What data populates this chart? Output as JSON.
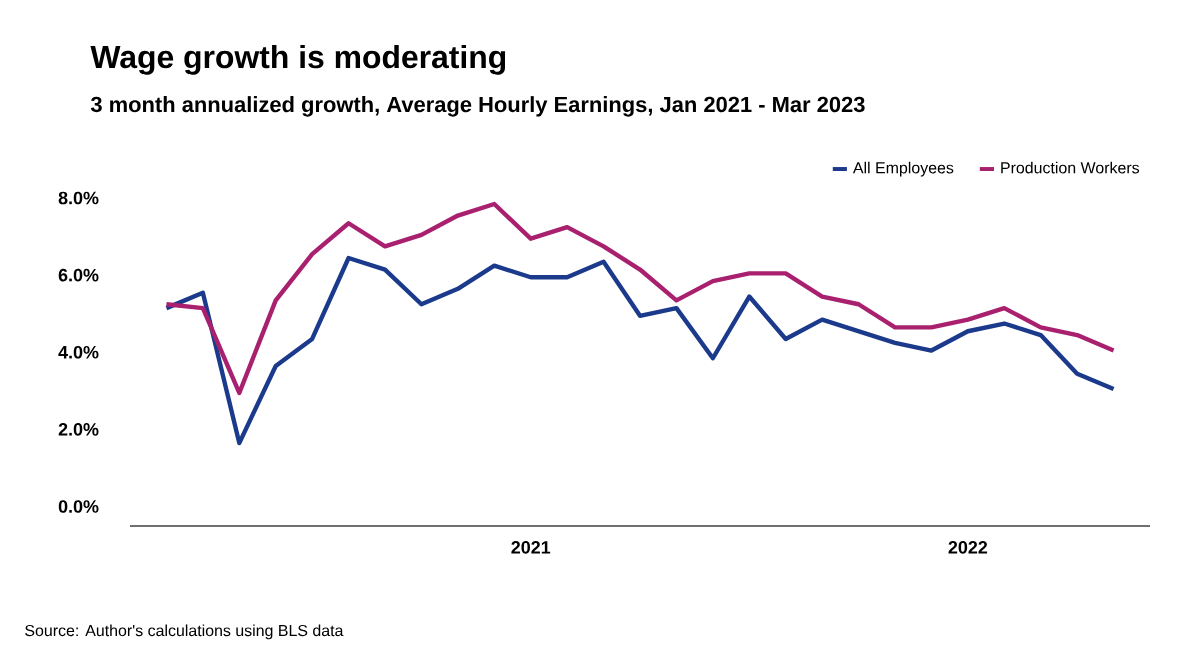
{
  "chart_data": {
    "type": "line",
    "title": "Wage growth is moderating",
    "subtitle": "3 month annualized growth, Average Hourly Earnings, Jan 2021 - Mar 2023",
    "categories": [
      null,
      null,
      null,
      null,
      null,
      null,
      null,
      null,
      null,
      null,
      "2021",
      null,
      null,
      null,
      null,
      null,
      null,
      null,
      null,
      null,
      null,
      null,
      "2022",
      null,
      null,
      null,
      null
    ],
    "series": [
      {
        "name": "All Employees",
        "color": "#1b3a8c",
        "values": [
          5.3,
          5.7,
          1.8,
          3.8,
          4.5,
          6.6,
          6.3,
          5.4,
          5.8,
          6.4,
          6.1,
          6.1,
          6.5,
          5.1,
          5.3,
          4.0,
          5.6,
          4.5,
          5.0,
          4.7,
          4.4,
          4.2,
          4.7,
          4.9,
          4.6,
          3.6,
          3.2
        ]
      },
      {
        "name": "Production Workers",
        "color": "#a8206e",
        "values": [
          5.4,
          5.3,
          3.1,
          5.5,
          6.7,
          7.5,
          6.9,
          7.2,
          7.7,
          8.0,
          7.1,
          7.4,
          6.9,
          6.3,
          5.5,
          6.0,
          6.2,
          6.2,
          5.6,
          5.4,
          4.8,
          4.8,
          5.0,
          5.3,
          4.8,
          4.6,
          4.2
        ]
      }
    ],
    "ylim": [
      -0.35,
      8
    ],
    "yticks": [
      {
        "value": 0,
        "label": "0.0%"
      },
      {
        "value": 2,
        "label": "2.0%"
      },
      {
        "value": 4,
        "label": "4.0%"
      },
      {
        "value": 6,
        "label": "6.0%"
      },
      {
        "value": 8,
        "label": "8.0%"
      }
    ],
    "grid": false,
    "legend": "top right",
    "marker": "none",
    "line_style": "solid",
    "annotations": [
      "Source: Author's calculations using BLS data"
    ]
  }
}
